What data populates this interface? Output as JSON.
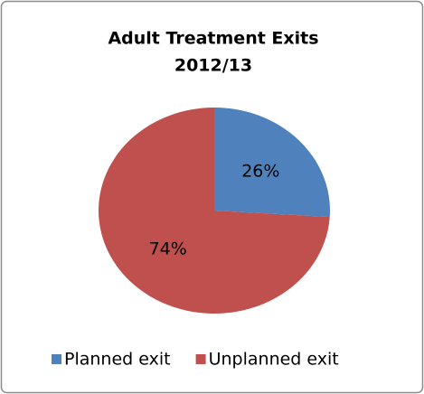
{
  "chart_data": {
    "type": "pie",
    "title": [
      "Adult Treatment Exits",
      "2012/13"
    ],
    "categories": [
      "Planned exit",
      "Unplanned exit"
    ],
    "values": [
      26,
      74
    ],
    "value_labels": [
      "26%",
      "74%"
    ],
    "colors": [
      "#4f81bd",
      "#c0504d"
    ],
    "legend": "bottom"
  }
}
